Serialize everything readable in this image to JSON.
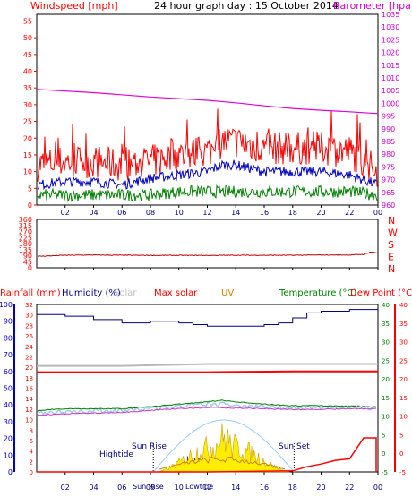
{
  "header": {
    "windspeed_label": "Windspeed [mph]",
    "title": "24 hour graph day : 15 October 2014",
    "barometer_label": "Barometer [hpa]"
  },
  "labels": {
    "rainfall": "Rainfall (mm)",
    "humidity": "Humidity (%)",
    "solar": "Solar",
    "max_solar": "Max solar",
    "uv": "UV",
    "temperature": "Temperature (°C)",
    "dew_point": "Dew Point (°C)"
  },
  "annotations": {
    "hightide": "Hightide",
    "sun_rise": "Sun Rise",
    "sun_set": "Sun Set",
    "lowtide": "Lowtide",
    "sun_rise_axis": "Sun Rise",
    "lowtide_axis": "Lowtide"
  },
  "colors": {
    "wind_gust": "#ff0000",
    "wind_avg": "#0000c0",
    "wind_low": "#008000",
    "barometer": "#e000e0",
    "wind_dir": "#c00000",
    "rain": "#ff0000",
    "humidity": "#000080",
    "solar": "#c0c0c0",
    "max_solar": "#ff0000",
    "uv": "#d08000",
    "temperature": "#008000",
    "dew_point": "#ff0000",
    "accent_purple": "#cc00cc"
  },
  "chart_data": [
    {
      "type": "line",
      "panel": "wind-barometer",
      "x_ticks": [
        "02",
        "04",
        "06",
        "08",
        "10",
        "12",
        "14",
        "16",
        "18",
        "20",
        "22",
        "00"
      ],
      "y_left_ticks": [
        "0",
        "5",
        "10",
        "15",
        "20",
        "25",
        "30",
        "35",
        "40",
        "45",
        "50",
        "55"
      ],
      "y_left_range": [
        0,
        57
      ],
      "y_right_ticks": [
        "960",
        "965",
        "970",
        "975",
        "980",
        "985",
        "990",
        "995",
        "1000",
        "1005",
        "1010",
        "1015",
        "1020",
        "1025",
        "1030",
        "1035"
      ],
      "y_right_range": [
        960,
        1035
      ],
      "series": [
        {
          "name": "Barometer",
          "x": [
            0,
            4,
            8,
            12,
            14,
            16,
            18,
            20,
            22,
            24
          ],
          "y": [
            1005.5,
            1004.2,
            1002.5,
            1001.2,
            1000.2,
            999.0,
            998.0,
            997.3,
            996.7,
            996.0
          ]
        },
        {
          "x": [
            0,
            2,
            4,
            6,
            8,
            10,
            12,
            13,
            14,
            16,
            18,
            20,
            22,
            24
          ],
          "y": [
            12,
            13,
            13,
            12,
            13,
            15,
            16,
            19,
            19,
            17,
            17,
            17,
            16,
            10
          ]
        },
        {
          "x": [
            0,
            2,
            4,
            6,
            8,
            10,
            12,
            13,
            14,
            16,
            18,
            20,
            22,
            24
          ],
          "y": [
            6,
            7,
            7,
            6,
            8,
            9,
            10,
            12,
            12,
            10,
            10,
            10,
            9,
            6
          ]
        },
        {
          "x": [
            0,
            2,
            4,
            6,
            8,
            10,
            12,
            13,
            14,
            16,
            18,
            20,
            22,
            24
          ],
          "y": [
            3,
            3,
            3,
            3,
            3,
            4,
            4,
            4,
            4,
            4,
            4,
            4,
            4,
            3
          ]
        }
      ]
    },
    {
      "type": "line",
      "panel": "wind-direction",
      "x_ticks": [
        "02",
        "04",
        "06",
        "08",
        "10",
        "12",
        "14",
        "16",
        "18",
        "20",
        "22",
        "00"
      ],
      "y_left_ticks": [
        "0",
        "45",
        "90",
        "135",
        "180",
        "225",
        "270",
        "315",
        "360"
      ],
      "y_left_range": [
        0,
        360
      ],
      "y_right_ticks": [
        "N",
        "W",
        "S",
        "E",
        "N"
      ],
      "series": [
        {
          "x": [
            0,
            2,
            4,
            6,
            8,
            10,
            12,
            14,
            16,
            18,
            20,
            22,
            23,
            23.5,
            24
          ],
          "y": [
            85,
            93,
            95,
            93,
            92,
            92,
            92,
            93,
            93,
            93,
            95,
            95,
            100,
            118,
            110
          ]
        }
      ]
    },
    {
      "type": "line",
      "panel": "rain-humidity-solar-temperature",
      "x_ticks": [
        "02",
        "04",
        "06",
        "08",
        "10",
        "12",
        "14",
        "16",
        "18",
        "20",
        "22",
        "00"
      ],
      "y_left_outer_ticks": [
        "0",
        "10",
        "20",
        "30",
        "40",
        "50",
        "60",
        "70",
        "80",
        "90",
        "100"
      ],
      "y_left_inner_ticks": [
        "0",
        "2",
        "4",
        "6",
        "8",
        "10",
        "12",
        "14",
        "16",
        "18",
        "20",
        "22",
        "24",
        "26",
        "28",
        "30",
        "32"
      ],
      "y_right_inner_ticks": [
        "-5",
        "0",
        "5",
        "10",
        "15",
        "20",
        "25",
        "30",
        "35",
        "40"
      ],
      "y_right_outer_ticks": [
        "-5",
        "0",
        "5",
        "10",
        "15",
        "20",
        "25",
        "30",
        "35",
        "40"
      ],
      "series": [
        {
          "name": "Humidity (%)",
          "x": [
            0,
            2,
            4,
            6,
            8,
            10,
            11,
            12,
            14,
            16,
            17,
            18,
            19,
            20,
            22,
            24
          ],
          "y": [
            94,
            93,
            91,
            89,
            90,
            89,
            88,
            87,
            87,
            88,
            89,
            92,
            95,
            96,
            97,
            97
          ]
        },
        {
          "name": "Temperature (°C)",
          "x": [
            0,
            2,
            4,
            6,
            8,
            10,
            12,
            13,
            14,
            16,
            18,
            20,
            22,
            24
          ],
          "y": [
            11.5,
            12,
            12,
            12,
            12.5,
            13.2,
            13.8,
            14.3,
            13.8,
            13.2,
            12.8,
            12.8,
            12.6,
            12.5
          ]
        },
        {
          "name": "Dew Point (°C)",
          "x": [
            0,
            2,
            4,
            6,
            8,
            10,
            12,
            14,
            16,
            18,
            20,
            22,
            24
          ],
          "y": [
            10.3,
            10.6,
            10.8,
            11,
            11.5,
            12,
            12.3,
            12.2,
            12,
            11.8,
            11.8,
            12,
            12
          ]
        },
        {
          "name": "Max solar",
          "x": [
            0,
            6,
            12,
            18,
            24
          ],
          "y": [
            21.8,
            21.8,
            21.8,
            22,
            22
          ]
        },
        {
          "name": "Solar",
          "x": [
            0,
            6,
            12,
            18,
            24
          ],
          "y": [
            23.5,
            23.5,
            24,
            24,
            24
          ]
        },
        {
          "name": "Rainfall (mm)",
          "x": [
            0,
            6,
            12,
            18,
            19,
            20,
            21,
            22,
            22.5,
            23,
            23.9,
            24
          ],
          "y": [
            0,
            0,
            0,
            0.2,
            1,
            1.5,
            2.2,
            2.5,
            4.5,
            6.5,
            6.5,
            0
          ]
        }
      ]
    }
  ]
}
